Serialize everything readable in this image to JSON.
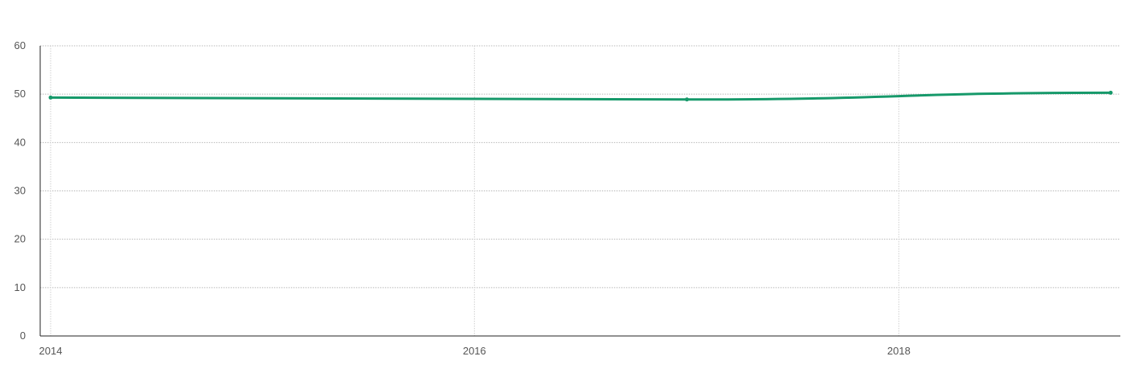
{
  "chart_data": {
    "type": "line",
    "title": "",
    "xlabel": "",
    "ylabel": "",
    "x_ticks": [
      "2014",
      "2016",
      "2018"
    ],
    "y_ticks": [
      "0",
      "10",
      "20",
      "30",
      "40",
      "50",
      "60"
    ],
    "xlim": [
      "2014-01-01",
      "2019-01-01"
    ],
    "ylim": [
      0,
      60
    ],
    "grid": true,
    "legend": "none",
    "series": [
      {
        "color": "#16996a",
        "points": [
          {
            "x": "2014-01-01",
            "y": 49.3
          },
          {
            "x": "2017-01-01",
            "y": 48.9
          },
          {
            "x": "2019-01-01",
            "y": 50.3
          }
        ]
      }
    ]
  }
}
